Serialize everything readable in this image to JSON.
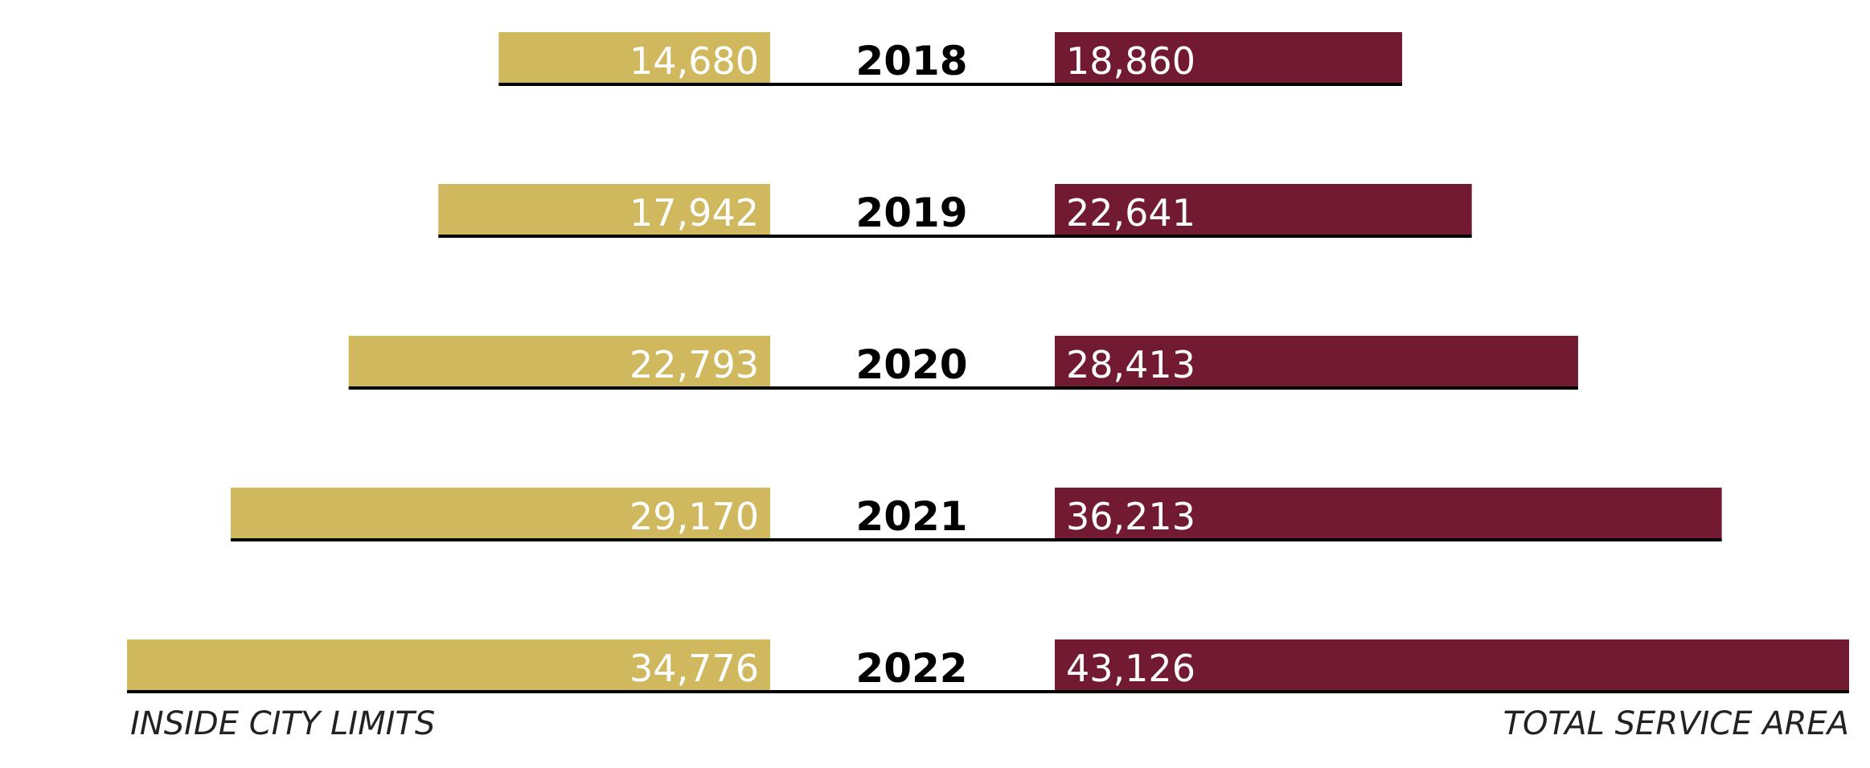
{
  "chart_data": {
    "type": "bar",
    "orientation": "diverging-horizontal",
    "categories": [
      "2018",
      "2019",
      "2020",
      "2021",
      "2022"
    ],
    "series": [
      {
        "name": "INSIDE CITY LIMITS",
        "side": "left",
        "color": "#D0B85E",
        "values": [
          14680,
          17942,
          22793,
          29170,
          34776
        ],
        "labels": [
          "14,680",
          "17,942",
          "22,793",
          "29,170",
          "34,776"
        ]
      },
      {
        "name": "TOTAL SERVICE AREA",
        "side": "right",
        "color": "#731A33",
        "values": [
          18860,
          22641,
          28413,
          36213,
          43126
        ],
        "labels": [
          "18,860",
          "22,641",
          "28,413",
          "36,213",
          "43,126"
        ]
      }
    ]
  },
  "captions": {
    "left": "INSIDE CITY LIMITS",
    "right": "TOTAL SERVICE AREA"
  },
  "colors": {
    "baseline": "#000000"
  }
}
